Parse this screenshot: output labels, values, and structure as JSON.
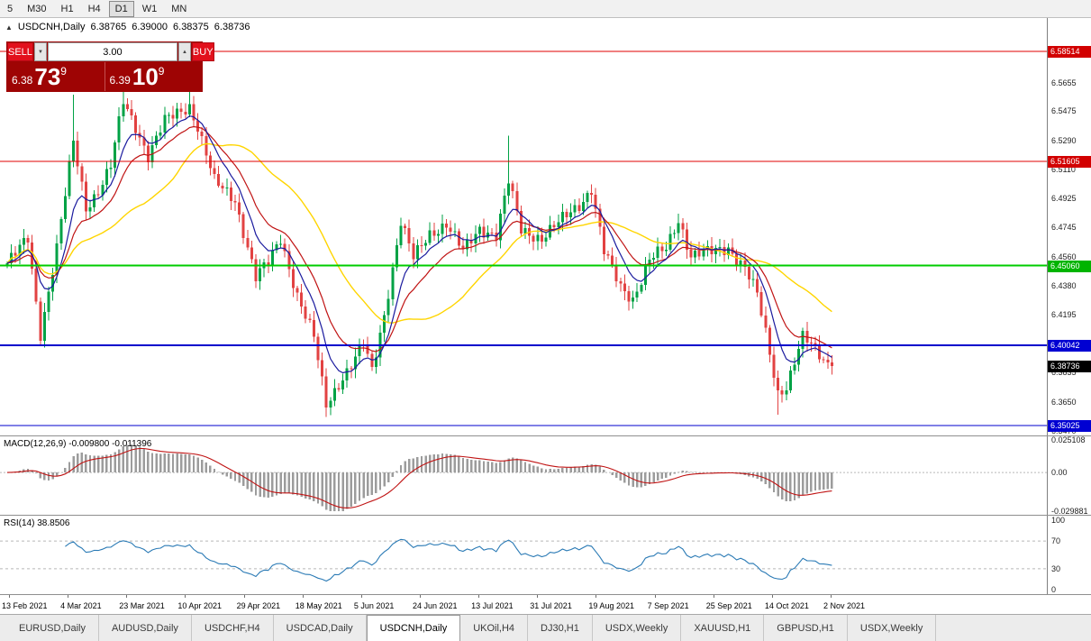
{
  "toolbar": {
    "timeframes": [
      {
        "label": "5",
        "active": false
      },
      {
        "label": "M30",
        "active": false
      },
      {
        "label": "H1",
        "active": false
      },
      {
        "label": "H4",
        "active": false
      },
      {
        "label": "D1",
        "active": true
      },
      {
        "label": "W1",
        "active": false
      },
      {
        "label": "MN",
        "active": false
      }
    ]
  },
  "chart_header": {
    "collapse_marker": "▲",
    "symbol": "USDCNH,Daily",
    "open": "6.38765",
    "high": "6.39000",
    "low": "6.38375",
    "close": "6.38736"
  },
  "trade_panel": {
    "sell_label": "SELL",
    "buy_label": "BUY",
    "volume": "3.00",
    "spinner_down": "▼",
    "spinner_up": "▲",
    "sell_price": {
      "prefix": "6.38",
      "big": "73",
      "sup": "9"
    },
    "buy_price": {
      "prefix": "6.39",
      "big": "10",
      "sup": "9"
    }
  },
  "price_scale": {
    "labels": [
      "6.5655",
      "6.5475",
      "6.5290",
      "6.5110",
      "6.4925",
      "6.4745",
      "6.4560",
      "6.4380",
      "6.4195",
      "6.4015",
      "6.3835",
      "6.3650",
      "6.3470"
    ],
    "tags": [
      {
        "value": "6.58514",
        "price": 6.58514,
        "color": "#d20000",
        "draggable": true
      },
      {
        "value": "6.51605",
        "price": 6.51605,
        "color": "#d20000",
        "draggable": true
      },
      {
        "value": "6.45060",
        "price": 6.4506,
        "color": "#00b400",
        "draggable": true
      },
      {
        "value": "6.40042",
        "price": 6.40042,
        "color": "#0000d2",
        "draggable": true
      },
      {
        "value": "6.38736",
        "price": 6.38736,
        "color": "#000000",
        "draggable": false
      },
      {
        "value": "6.35025",
        "price": 6.35025,
        "color": "#0000d2",
        "draggable": true
      }
    ]
  },
  "macd_panel": {
    "label": "MACD(12,26,9) -0.009800 -0.011396",
    "scale_top": "0.025108",
    "scale_zero": "0.00",
    "scale_bottom": "-0.029881",
    "range": [
      -0.029881,
      0.025108
    ]
  },
  "rsi_panel": {
    "label": "RSI(14) 38.8506",
    "scale": [
      "100",
      "70",
      "30",
      "0"
    ],
    "guide_levels": [
      70,
      30
    ],
    "range": [
      0,
      100
    ]
  },
  "time_axis": {
    "dates": [
      "13 Feb 2021",
      "4 Mar 2021",
      "23 Mar 2021",
      "10 Apr 2021",
      "29 Apr 2021",
      "18 May 2021",
      "5 Jun 2021",
      "24 Jun 2021",
      "13 Jul 2021",
      "31 Jul 2021",
      "19 Aug 2021",
      "7 Sep 2021",
      "25 Sep 2021",
      "14 Oct 2021",
      "2 Nov 2021"
    ]
  },
  "tabs": {
    "items": [
      "EURUSD,Daily",
      "AUDUSD,Daily",
      "USDCHF,H4",
      "USDCAD,Daily",
      "USDCNH,Daily",
      "UKOil,H4",
      "DJ30,H1",
      "USDX,Weekly",
      "XAUUSD,H1",
      "GBPUSD,H1",
      "USDX,Weekly"
    ],
    "active_index": 4
  },
  "chart_data": {
    "type": "candlestick",
    "title": "USDCNH,Daily",
    "ohlc_display": {
      "open": 6.38765,
      "high": 6.39,
      "low": 6.38375,
      "close": 6.38736
    },
    "ylim": [
      6.3439,
      6.606
    ],
    "bar_count": 200,
    "levels": [
      {
        "price": 6.58514,
        "color": "#e00000",
        "width": 1
      },
      {
        "price": 6.51605,
        "color": "#e00000",
        "width": 1
      },
      {
        "price": 6.4506,
        "color": "#00cc00",
        "width": 2
      },
      {
        "price": 6.40042,
        "color": "#0000cc",
        "width": 2
      },
      {
        "price": 6.35025,
        "color": "#0000cc",
        "width": 1
      }
    ],
    "close_anchors": [
      [
        0,
        6.452
      ],
      [
        5,
        6.467
      ],
      [
        8,
        6.408
      ],
      [
        12,
        6.462
      ],
      [
        16,
        6.528
      ],
      [
        19,
        6.487
      ],
      [
        22,
        6.498
      ],
      [
        25,
        6.513
      ],
      [
        28,
        6.553
      ],
      [
        31,
        6.538
      ],
      [
        34,
        6.52
      ],
      [
        38,
        6.541
      ],
      [
        44,
        6.551
      ],
      [
        46,
        6.538
      ],
      [
        50,
        6.503
      ],
      [
        55,
        6.492
      ],
      [
        60,
        6.443
      ],
      [
        63,
        6.452
      ],
      [
        66,
        6.468
      ],
      [
        70,
        6.432
      ],
      [
        74,
        6.405
      ],
      [
        77,
        6.363
      ],
      [
        80,
        6.377
      ],
      [
        83,
        6.388
      ],
      [
        86,
        6.401
      ],
      [
        88,
        6.384
      ],
      [
        91,
        6.42
      ],
      [
        95,
        6.478
      ],
      [
        98,
        6.455
      ],
      [
        102,
        6.471
      ],
      [
        106,
        6.477
      ],
      [
        110,
        6.459
      ],
      [
        114,
        6.474
      ],
      [
        118,
        6.47
      ],
      [
        121,
        6.503
      ],
      [
        124,
        6.473
      ],
      [
        129,
        6.468
      ],
      [
        133,
        6.477
      ],
      [
        138,
        6.489
      ],
      [
        141,
        6.499
      ],
      [
        144,
        6.459
      ],
      [
        148,
        6.437
      ],
      [
        151,
        6.43
      ],
      [
        155,
        6.454
      ],
      [
        159,
        6.461
      ],
      [
        162,
        6.48
      ],
      [
        165,
        6.457
      ],
      [
        170,
        6.459
      ],
      [
        174,
        6.462
      ],
      [
        178,
        6.449
      ],
      [
        181,
        6.432
      ],
      [
        183,
        6.408
      ],
      [
        186,
        6.371
      ],
      [
        188,
        6.375
      ],
      [
        192,
        6.405
      ],
      [
        195,
        6.398
      ],
      [
        197,
        6.392
      ],
      [
        199,
        6.38736
      ]
    ],
    "wick_overrides": [
      [
        16,
        6.558,
        null
      ],
      [
        28,
        6.5745,
        null
      ],
      [
        44,
        6.5655,
        null
      ],
      [
        77,
        null,
        6.3555
      ],
      [
        121,
        6.532,
        null
      ],
      [
        186,
        null,
        6.357
      ]
    ],
    "wiggle": [
      0.003,
      2.17,
      0.002,
      0.53
    ],
    "wick": 0.0045,
    "ma_periods": {
      "fast_blue": 8,
      "mid_red": 16,
      "slow_yellow": 34
    },
    "colors": {
      "up": "#00a245",
      "down": "#e24242",
      "ma_blue": "#1a1a9e",
      "ma_red": "#c01414",
      "ma_yellow": "#ffd500",
      "macd_hist": "#9c9c9c",
      "macd_signal": "#c01414",
      "rsi": "#2a7ab5"
    },
    "macd": {
      "fast": 12,
      "slow": 26,
      "signal": 9,
      "display": [
        -0.0098,
        -0.011396
      ]
    },
    "rsi": {
      "period": 14,
      "value": 38.8506
    }
  }
}
